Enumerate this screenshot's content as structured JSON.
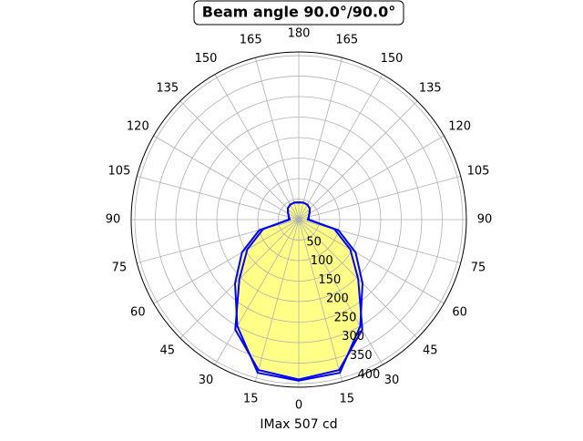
{
  "chart_data": {
    "type": "polar",
    "title": "Beam angle 90.0°/90.0°",
    "x_label": "IMax 507 cd",
    "theta": [
      0,
      15,
      30,
      45,
      60,
      75,
      90,
      105,
      120,
      135,
      150,
      165,
      180,
      195,
      210,
      225,
      240,
      255,
      270,
      285,
      300,
      315,
      330,
      345
    ],
    "series": [
      {
        "color": "#0000ff",
        "fill": "#ffff88",
        "values": [
          393,
          387,
          300,
          220,
          160,
          100,
          22,
          25,
          30,
          38,
          42,
          43,
          42,
          43,
          42,
          38,
          30,
          25,
          22,
          100,
          160,
          220,
          300,
          387
        ]
      },
      {
        "color": "#0000ff",
        "values": [
          390,
          380,
          310,
          205,
          145,
          90,
          25,
          25,
          30,
          38,
          42,
          43,
          42,
          43,
          42,
          38,
          30,
          25,
          25,
          90,
          145,
          205,
          310,
          380
        ]
      }
    ],
    "rlim": [
      0,
      409
    ],
    "rticks": [
      50,
      100,
      150,
      200,
      250,
      300,
      350,
      400
    ],
    "thetaticks": [
      0,
      15,
      30,
      45,
      60,
      75,
      90,
      105,
      120,
      135,
      150,
      165,
      180,
      {
        "value": 195,
        "label": "165"
      },
      {
        "value": 210,
        "label": "150"
      },
      {
        "value": 225,
        "label": "135"
      },
      {
        "value": 240,
        "label": "120"
      },
      {
        "value": 255,
        "label": "105"
      },
      {
        "value": 270,
        "label": "90"
      },
      {
        "value": 285,
        "label": "75"
      },
      {
        "value": 300,
        "label": "60"
      },
      {
        "value": 315,
        "label": "45"
      },
      {
        "value": 330,
        "label": "30"
      },
      {
        "value": 345,
        "label": "15"
      }
    ],
    "grid": true
  }
}
